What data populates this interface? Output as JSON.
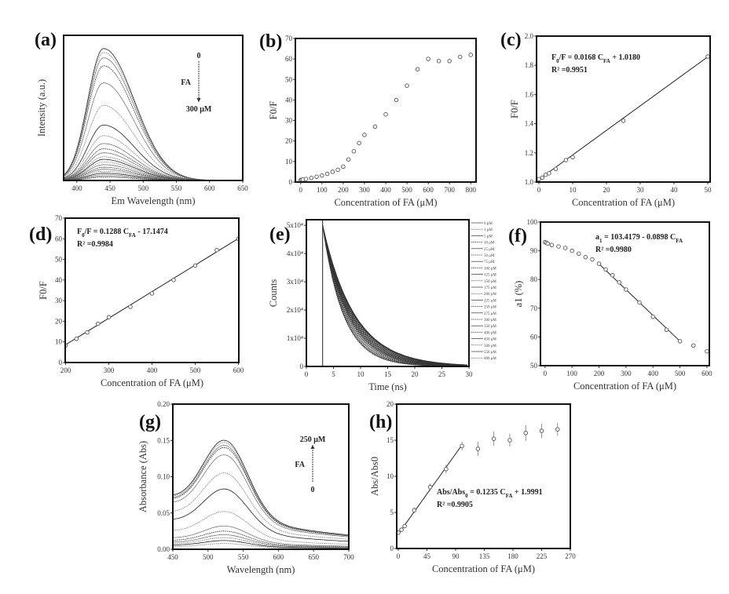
{
  "chart_data": [
    {
      "id": "a",
      "panel_label": "(a)",
      "type": "line",
      "xlabel": "Em Wavelength (nm)",
      "ylabel": "Intensity (a.u.)",
      "xlim": [
        380,
        650
      ],
      "ylim": [
        0,
        1.1
      ],
      "xticks": [
        400,
        450,
        500,
        550,
        600,
        650
      ],
      "xticklabels": [
        "400",
        "450",
        "500",
        "550",
        "600",
        "650"
      ],
      "yticks": [],
      "yticklabels": [],
      "peak_wavelength": 440,
      "peak_intensities": [
        1.0,
        0.97,
        0.93,
        0.87,
        0.74,
        0.57,
        0.42,
        0.34,
        0.28,
        0.24,
        0.21,
        0.18,
        0.16,
        0.14,
        0.12,
        0.1,
        0.085,
        0.07,
        0.055,
        0.045,
        0.035,
        0.025
      ],
      "annotations": {
        "arrow_top": "0",
        "arrow_mid": "FA",
        "arrow_bottom": "300 μM"
      }
    },
    {
      "id": "b",
      "panel_label": "(b)",
      "type": "scatter",
      "xlabel": "Concentration of FA (μM)",
      "ylabel": "F0/F",
      "xlim": [
        -25,
        825
      ],
      "ylim": [
        0,
        70
      ],
      "xticks": [
        0,
        100,
        200,
        300,
        400,
        500,
        600,
        700,
        800
      ],
      "xticklabels": [
        "0",
        "100",
        "200",
        "300",
        "400",
        "500",
        "600",
        "700",
        "800"
      ],
      "yticks": [
        0,
        10,
        20,
        30,
        40,
        50,
        60,
        70
      ],
      "yticklabels": [
        "0",
        "10",
        "20",
        "30",
        "40",
        "50",
        "60",
        "70"
      ],
      "x": [
        0,
        5,
        10,
        25,
        50,
        75,
        100,
        125,
        150,
        175,
        200,
        225,
        250,
        275,
        300,
        350,
        400,
        450,
        500,
        550,
        600,
        650,
        700,
        750,
        800
      ],
      "y": [
        1,
        1.1,
        1.2,
        1.5,
        2,
        2.6,
        3.2,
        4,
        5,
        6,
        7.5,
        11,
        15,
        19,
        23,
        27,
        33,
        40,
        47,
        55,
        60,
        59,
        59,
        61,
        62
      ]
    },
    {
      "id": "c",
      "panel_label": "(c)",
      "type": "scatter",
      "xlabel": "Concentration of FA (μM)",
      "ylabel": "F0/F",
      "xlim": [
        -0.7,
        50.7
      ],
      "ylim": [
        1.0,
        2.0
      ],
      "xticks": [
        0,
        10,
        20,
        30,
        40,
        50
      ],
      "xticklabels": [
        "0",
        "10",
        "20",
        "30",
        "40",
        "50"
      ],
      "yticks": [
        1.0,
        1.2,
        1.4,
        1.6,
        1.8,
        2.0
      ],
      "yticklabels": [
        "1.0",
        "1.2",
        "1.4",
        "1.6",
        "1.8",
        "2.0"
      ],
      "x": [
        0,
        1,
        2,
        3,
        5,
        8,
        10,
        25,
        50
      ],
      "y": [
        1.02,
        1.03,
        1.05,
        1.06,
        1.09,
        1.15,
        1.17,
        1.42,
        1.86
      ],
      "fit": {
        "slope": 0.0168,
        "intercept": 1.018,
        "range": [
          0,
          50
        ]
      },
      "equation": [
        {
          "t": "F"
        },
        {
          "t": "0",
          "sub": true
        },
        {
          "t": "/F = 0.0168 C"
        },
        {
          "t": "FA",
          "sub": true
        },
        {
          "t": " + 1.0180"
        }
      ],
      "r2": "R² =0.9951"
    },
    {
      "id": "d",
      "panel_label": "(d)",
      "type": "scatter",
      "xlabel": "Concentration of FA (μM)",
      "ylabel": "F0/F",
      "xlim": [
        199,
        601
      ],
      "ylim": [
        0,
        70
      ],
      "xticks": [
        200,
        300,
        400,
        500,
        600
      ],
      "xticklabels": [
        "200",
        "300",
        "400",
        "500",
        "600"
      ],
      "yticks": [
        0,
        10,
        20,
        30,
        40,
        50,
        60,
        70
      ],
      "yticklabels": [
        "0",
        "10",
        "20",
        "30",
        "40",
        "50",
        "60",
        "70"
      ],
      "x": [
        200,
        225,
        250,
        275,
        300,
        350,
        400,
        450,
        500,
        550,
        600
      ],
      "y": [
        8.3,
        11.5,
        14.6,
        18.8,
        22,
        27,
        33.5,
        40,
        47,
        54.5,
        60
      ],
      "fit": {
        "slope": 0.1288,
        "intercept": -17.1474,
        "range": [
          200,
          600
        ]
      },
      "equation": [
        {
          "t": "F"
        },
        {
          "t": "0",
          "sub": true
        },
        {
          "t": "/F = 0.1288 C"
        },
        {
          "t": "FA",
          "sub": true
        },
        {
          "t": " - 17.1474"
        }
      ],
      "r2": "R² =0.9984"
    },
    {
      "id": "e",
      "panel_label": "(e)",
      "type": "line",
      "xlabel": "Time (ns)",
      "ylabel": "Counts",
      "xlim": [
        0,
        30
      ],
      "ylim": [
        0,
        52000
      ],
      "xticks": [
        0,
        5,
        10,
        15,
        20,
        25,
        30
      ],
      "xticklabels": [
        "0",
        "5",
        "10",
        "15",
        "20",
        "25",
        "30"
      ],
      "yticks": [
        0,
        10000,
        20000,
        30000,
        40000,
        50000
      ],
      "yticklabels": [
        "0",
        "1x10⁴",
        "2x10⁴",
        "3x10⁴",
        "4x10⁴",
        "5x10⁴"
      ],
      "irf_time": 3,
      "amplitude": 50000,
      "legend": [
        "0 μM",
        "1 μM",
        "5 μM",
        "10 μM",
        "25 μM",
        "50 μM",
        "75 μM",
        "100 μM",
        "125 μM",
        "150 μM",
        "175 μM",
        "200 μM",
        "225 μM",
        "250 μM",
        "275 μM",
        "300 μM",
        "350 μM",
        "400 μM",
        "450 μM",
        "500 μM",
        "550 μM",
        "600 μM"
      ],
      "lifetimes_ns": [
        5.9,
        5.85,
        5.8,
        5.75,
        5.7,
        5.6,
        5.5,
        5.4,
        5.3,
        5.2,
        5.1,
        5.0,
        4.9,
        4.8,
        4.7,
        4.6,
        4.45,
        4.3,
        4.15,
        4.0,
        3.9,
        3.8
      ]
    },
    {
      "id": "f",
      "panel_label": "(f)",
      "type": "scatter",
      "xlabel": "Concentration of FA (μM)",
      "ylabel": "a1 (%)",
      "xlim": [
        -17,
        609
      ],
      "ylim": [
        50,
        100
      ],
      "xticks": [
        0,
        100,
        200,
        300,
        400,
        500,
        600
      ],
      "xticklabels": [
        "0",
        "100",
        "200",
        "300",
        "400",
        "500",
        "600"
      ],
      "yticks": [
        50,
        60,
        70,
        80,
        90,
        100
      ],
      "yticklabels": [
        "50",
        "60",
        "70",
        "80",
        "90",
        "100"
      ],
      "x": [
        0,
        5,
        10,
        25,
        50,
        75,
        100,
        125,
        150,
        175,
        200,
        225,
        250,
        275,
        300,
        350,
        400,
        450,
        500,
        550,
        600
      ],
      "y": [
        93,
        92.8,
        92.5,
        92,
        91.5,
        91,
        90,
        89,
        87.8,
        87,
        85.5,
        83.5,
        81.5,
        79,
        76.5,
        72,
        67,
        62.5,
        58.5,
        57,
        55
      ],
      "fit": {
        "slope": -0.0898,
        "intercept": 103.4179,
        "range": [
          200,
          500
        ]
      },
      "equation": [
        {
          "t": "a"
        },
        {
          "t": "1",
          "sub": true
        },
        {
          "t": " = 103.4179 - 0.0898 C"
        },
        {
          "t": "FA",
          "sub": true
        }
      ],
      "r2": "R² =0.9980"
    },
    {
      "id": "g",
      "panel_label": "(g)",
      "type": "line",
      "xlabel": "Wavelength (nm)",
      "ylabel": "Absorbance (Abs)",
      "xlim": [
        450,
        700
      ],
      "ylim": [
        0,
        0.2
      ],
      "xticks": [
        450,
        500,
        550,
        600,
        650,
        700
      ],
      "xticklabels": [
        "450",
        "500",
        "550",
        "600",
        "650",
        "700"
      ],
      "yticks": [
        0,
        0.05,
        0.1,
        0.15,
        0.2
      ],
      "yticklabels": [
        "0.00",
        "0.05",
        "0.10",
        "0.15",
        "0.20"
      ],
      "peak_wavelength": 525,
      "peak_absorbances": [
        0.15,
        0.147,
        0.143,
        0.14,
        0.13,
        0.105,
        0.083,
        0.052,
        0.032,
        0.025,
        0.02,
        0.016,
        0.012,
        0.008
      ],
      "annotations": {
        "arrow_top": "250 μM",
        "arrow_mid": "FA",
        "arrow_bottom": "0"
      }
    },
    {
      "id": "h",
      "panel_label": "(h)",
      "type": "scatter",
      "xlabel": "Concentration of FA (μM)",
      "ylabel": "Abs/Abs0",
      "xlim": [
        -2.5,
        270
      ],
      "ylim": [
        0,
        20
      ],
      "xticks": [
        0,
        45,
        90,
        135,
        180,
        225,
        270
      ],
      "xticklabels": [
        "0",
        "45",
        "90",
        "135",
        "180",
        "225",
        "270"
      ],
      "yticks": [
        0,
        5,
        10,
        15,
        20
      ],
      "yticklabels": [
        "0",
        "5",
        "10",
        "15",
        "20"
      ],
      "x": [
        0,
        5,
        10,
        25,
        50,
        75,
        100,
        125,
        150,
        175,
        200,
        225,
        250
      ],
      "y": [
        2.2,
        2.6,
        3.1,
        5.3,
        8.5,
        11,
        14.2,
        13.8,
        15.2,
        15,
        16,
        16.3,
        16.5
      ],
      "error": [
        0.3,
        0.3,
        0.3,
        0.4,
        0.5,
        0.6,
        0.6,
        1.0,
        1.0,
        0.9,
        1.1,
        1.0,
        0.9
      ],
      "fit": {
        "slope": 0.1235,
        "intercept": 1.9991,
        "range": [
          0,
          100
        ]
      },
      "equation": [
        {
          "t": "Abs/Abs"
        },
        {
          "t": "0",
          "sub": true
        },
        {
          "t": " = 0.1235 C"
        },
        {
          "t": "FA",
          "sub": true
        },
        {
          "t": " + 1.9991"
        }
      ],
      "r2": "R² =0.9905"
    }
  ]
}
